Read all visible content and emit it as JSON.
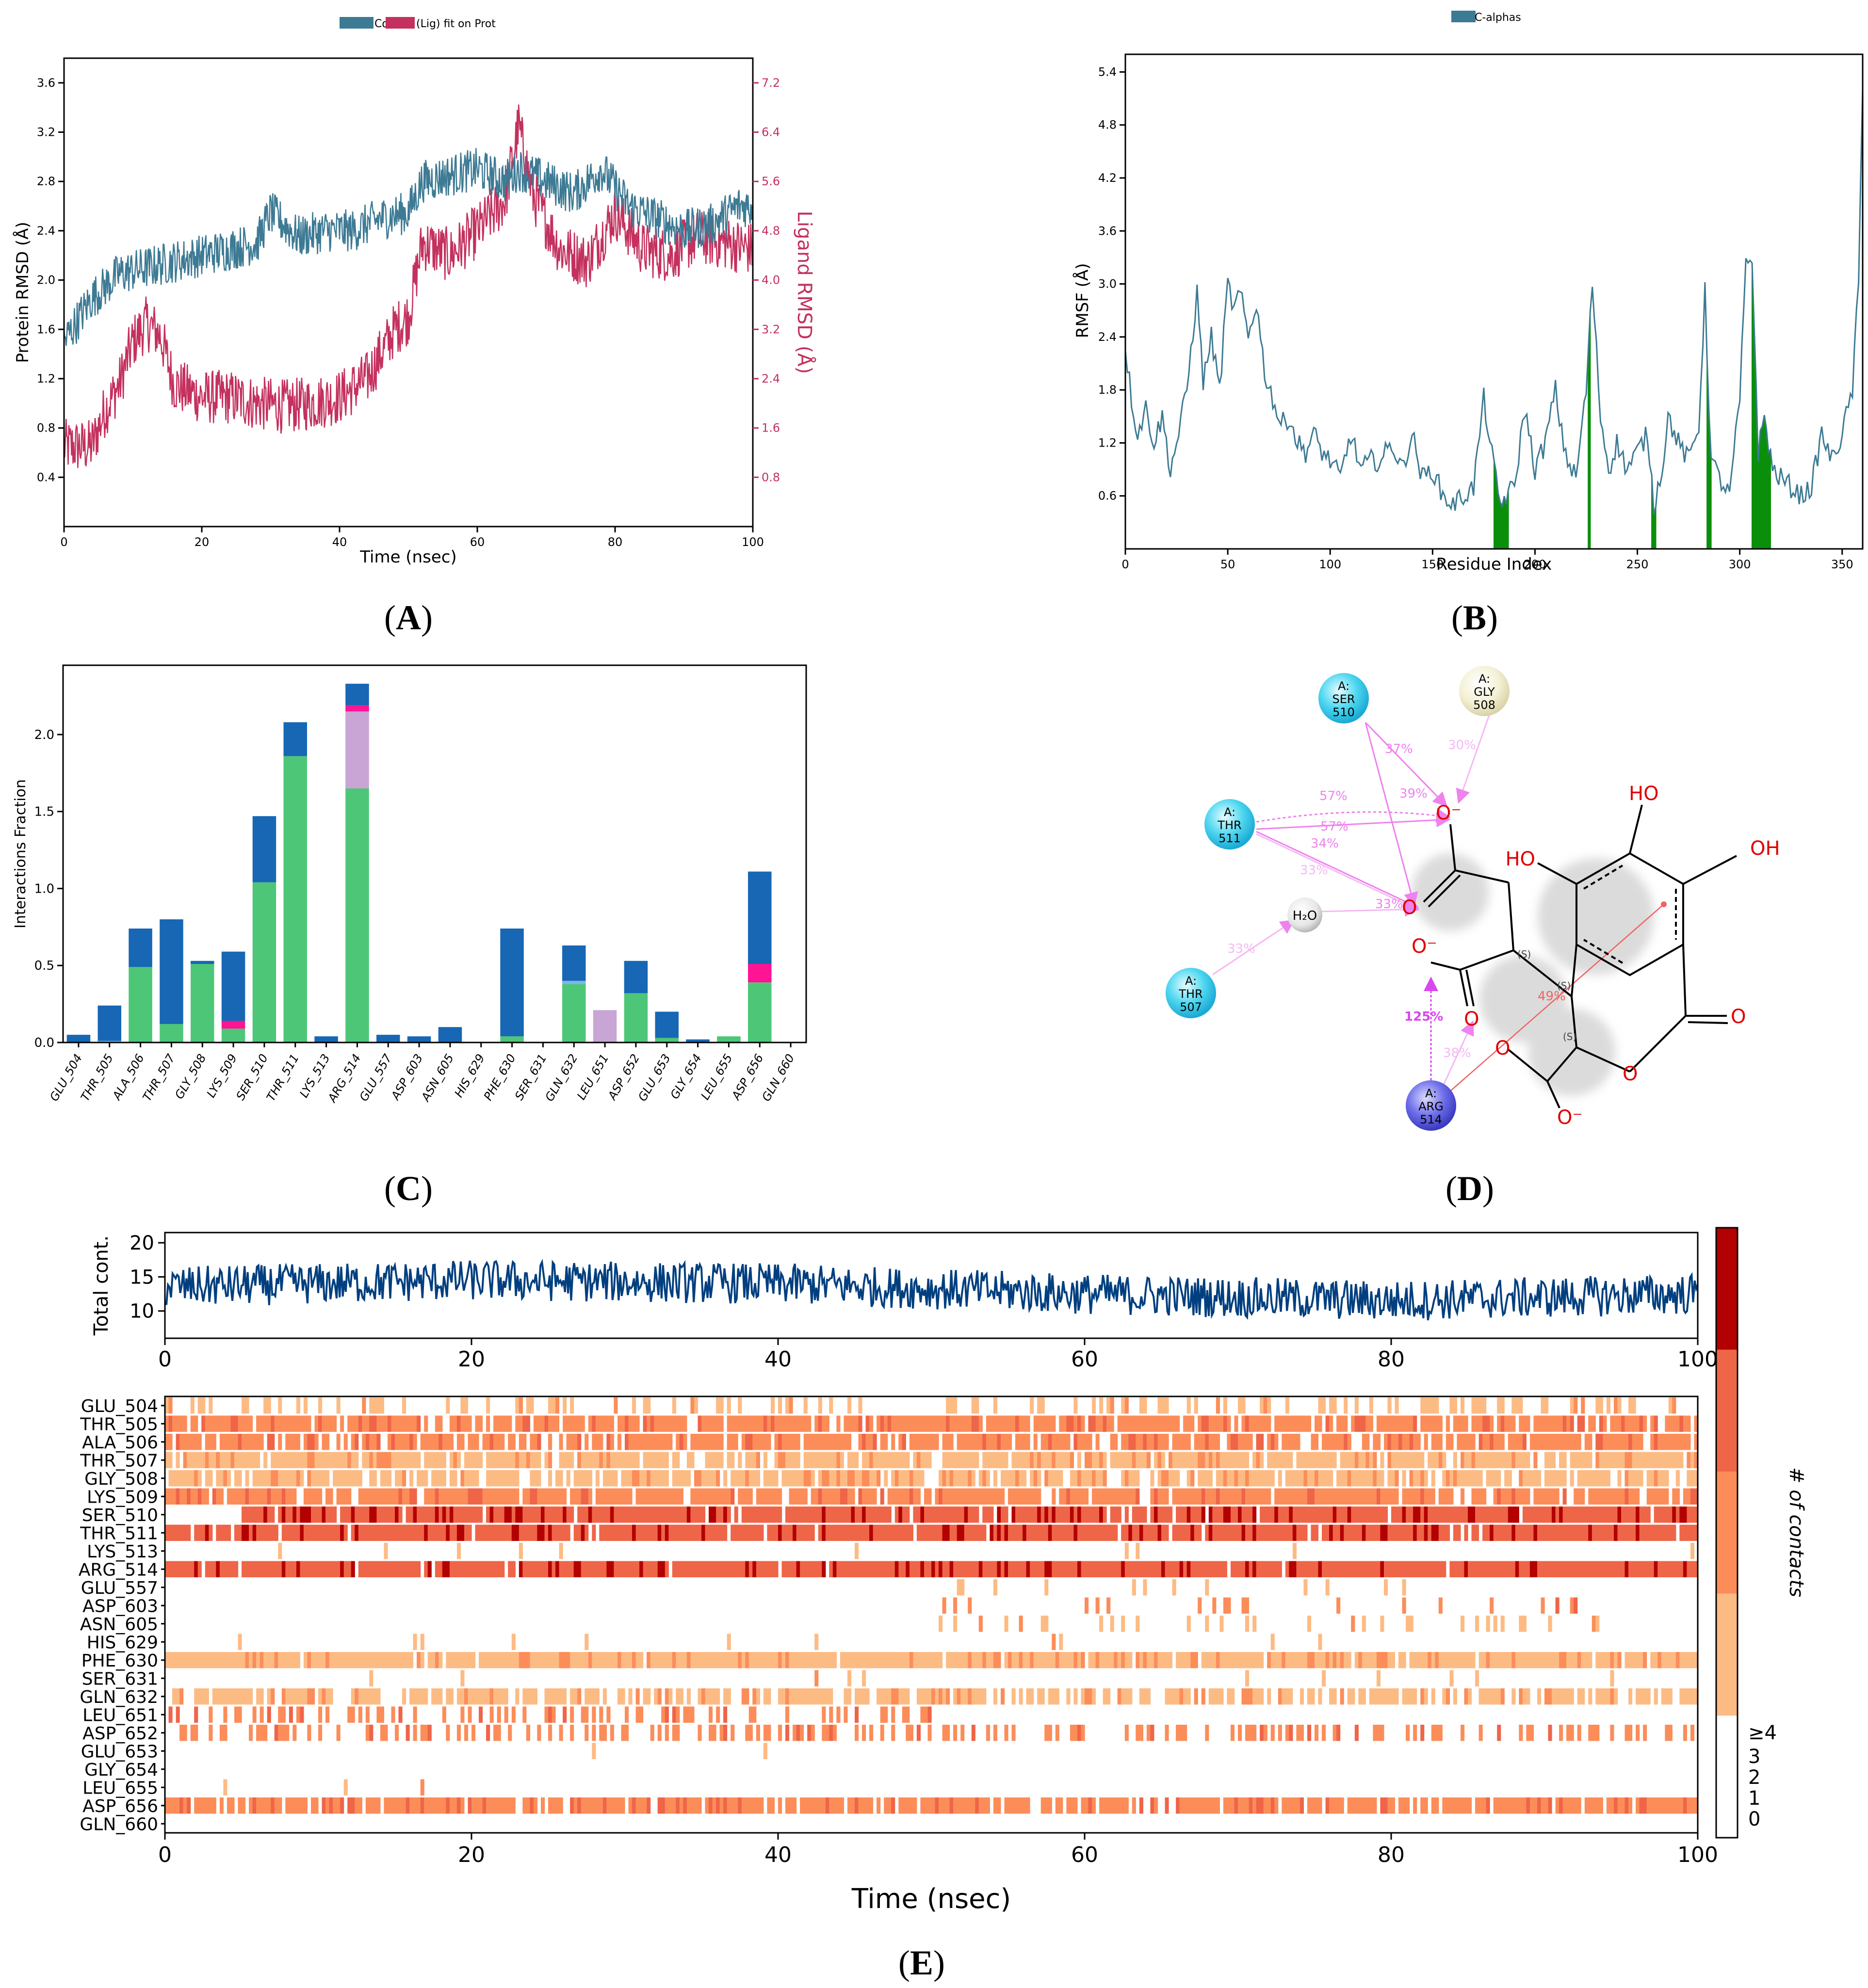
{
  "panels": {
    "A": {
      "label_open": "(",
      "letter": "A",
      "label_close": ")"
    },
    "B": {
      "label_open": "(",
      "letter": "B",
      "label_close": ")"
    },
    "C": {
      "label_open": "(",
      "letter": "C",
      "label_close": ")"
    },
    "D": {
      "label_open": "(",
      "letter": "D",
      "label_close": ")"
    },
    "E": {
      "label_open": "(",
      "letter": "E",
      "label_close": ")"
    }
  },
  "colors": {
    "protein": "#3d7a94",
    "ligand": "#c4315e",
    "green": "#0a8f0a",
    "hbond": "#4dc777",
    "hydrophobic": "#7bb6ea",
    "water": "#1767b5",
    "ionic": "#ff1493",
    "pi": "#c8a5d4",
    "contact_line": "#003f7f"
  },
  "chart_data": [
    {
      "id": "A",
      "type": "line",
      "legend": [
        "Cα",
        "(Lig) fit on Prot"
      ],
      "xlabel": "Time (nsec)",
      "ylabel": "Protein RMSD (Å)",
      "y2label": "Ligand RMSD (Å)",
      "xlim": [
        0,
        100
      ],
      "ylim": [
        0,
        3.8
      ],
      "y2lim": [
        0,
        7.6
      ],
      "xticks": [
        "0",
        "20",
        "40",
        "60",
        "80",
        "100"
      ],
      "yticks": [
        "0.4",
        "0.8",
        "1.2",
        "1.6",
        "2.0",
        "2.4",
        "2.8",
        "3.2",
        "3.6"
      ],
      "y2ticks": [
        "0.8",
        "1.6",
        "2.4",
        "3.2",
        "4.0",
        "4.8",
        "5.6",
        "6.4",
        "7.2"
      ],
      "series": [
        {
          "name": "Cα",
          "x": [
            0,
            4,
            8,
            12,
            16,
            20,
            24,
            28,
            30,
            34,
            38,
            42,
            46,
            50,
            52,
            56,
            60,
            64,
            66,
            70,
            74,
            78,
            82,
            86,
            90,
            94,
            98,
            100
          ],
          "values": [
            1.5,
            1.85,
            2.05,
            2.1,
            2.15,
            2.2,
            2.25,
            2.3,
            2.55,
            2.35,
            2.4,
            2.4,
            2.5,
            2.55,
            2.8,
            2.85,
            2.9,
            2.8,
            2.9,
            2.8,
            2.7,
            2.9,
            2.6,
            2.5,
            2.4,
            2.45,
            2.6,
            2.6
          ]
        },
        {
          "name": "(Lig) fit on Prot",
          "x": [
            0,
            4,
            6,
            8,
            10,
            12,
            14,
            16,
            18,
            20,
            24,
            28,
            32,
            36,
            40,
            44,
            48,
            50,
            52,
            56,
            60,
            64,
            66,
            68,
            72,
            76,
            80,
            84,
            88,
            92,
            96,
            100
          ],
          "values": [
            1.3,
            1.3,
            1.9,
            2.3,
            3.0,
            3.3,
            3.1,
            2.3,
            2.2,
            2.1,
            2.1,
            2.0,
            1.95,
            2.0,
            2.1,
            2.4,
            3.2,
            3.4,
            4.6,
            4.4,
            4.8,
            5.3,
            6.5,
            5.4,
            4.5,
            4.3,
            5.1,
            4.5,
            4.4,
            4.7,
            4.6,
            4.5
          ]
        }
      ]
    },
    {
      "id": "B",
      "type": "line",
      "legend": [
        "C-alphas"
      ],
      "xlabel": "Residue Index",
      "ylabel": "RMSF (Å)",
      "xlim": [
        0,
        360
      ],
      "ylim": [
        0,
        5.6
      ],
      "xticks": [
        "0",
        "50",
        "100",
        "150",
        "200",
        "250",
        "300",
        "350"
      ],
      "yticks": [
        "0.6",
        "1.2",
        "1.8",
        "2.4",
        "3.0",
        "3.6",
        "4.2",
        "4.8",
        "5.4"
      ],
      "series": [
        {
          "name": "C-alphas",
          "x": [
            0,
            3,
            6,
            10,
            14,
            18,
            22,
            26,
            30,
            35,
            38,
            42,
            46,
            50,
            53,
            56,
            60,
            64,
            68,
            72,
            76,
            80,
            84,
            88,
            92,
            96,
            100,
            105,
            110,
            115,
            120,
            125,
            130,
            135,
            140,
            145,
            150,
            155,
            160,
            165,
            170,
            175,
            180,
            183,
            186,
            190,
            195,
            200,
            205,
            210,
            213,
            216,
            220,
            225,
            228,
            232,
            236,
            240,
            245,
            250,
            255,
            258,
            262,
            265,
            270,
            275,
            280,
            283,
            286,
            290,
            295,
            300,
            303,
            306,
            309,
            312,
            316,
            320,
            325,
            330,
            335,
            340,
            345,
            350,
            355,
            358,
            360
          ],
          "values": [
            2.3,
            1.7,
            1.3,
            1.6,
            1.2,
            1.5,
            0.9,
            1.3,
            1.8,
            2.9,
            1.9,
            2.4,
            1.8,
            3.0,
            2.7,
            2.9,
            2.4,
            2.8,
            2.0,
            1.7,
            1.4,
            1.5,
            1.2,
            1.1,
            1.3,
            1.1,
            1.0,
            0.8,
            1.3,
            0.9,
            1.0,
            1.0,
            1.2,
            0.9,
            1.3,
            0.8,
            0.9,
            0.6,
            0.5,
            0.6,
            0.7,
            1.7,
            0.9,
            0.5,
            0.6,
            0.7,
            1.6,
            0.9,
            1.2,
            1.8,
            1.3,
            1.0,
            0.8,
            1.8,
            3.0,
            1.5,
            0.9,
            1.2,
            0.9,
            1.1,
            1.3,
            0.5,
            0.9,
            1.5,
            1.2,
            1.0,
            1.4,
            2.9,
            1.0,
            0.8,
            0.6,
            1.7,
            3.2,
            3.3,
            1.1,
            1.5,
            0.9,
            0.8,
            0.7,
            0.6,
            0.7,
            1.3,
            1.0,
            1.3,
            1.8,
            3.0,
            5.2
          ]
        }
      ],
      "highlight_regions": [
        [
          180,
          187
        ],
        [
          226,
          227
        ],
        [
          257,
          259
        ],
        [
          284,
          286
        ],
        [
          306,
          315
        ]
      ]
    },
    {
      "id": "C",
      "type": "bar",
      "ylabel": "Interactions Fraction",
      "ylim": [
        0,
        2.45
      ],
      "yticks": [
        "0.0",
        "0.5",
        "1.0",
        "1.5",
        "2.0"
      ],
      "categories": [
        "GLU_504",
        "THR_505",
        "ALA_506",
        "THR_507",
        "GLY_508",
        "LYS_509",
        "SER_510",
        "THR_511",
        "LYS_513",
        "ARG_514",
        "GLU_557",
        "ASP_603",
        "ASN_605",
        "HIS_629",
        "PHE_630",
        "SER_631",
        "GLN_632",
        "LEU_651",
        "ASP_652",
        "GLU_653",
        "GLY_654",
        "LEU_655",
        "ASP_656",
        "GLN_660"
      ],
      "series": [
        {
          "name": "H-bonds",
          "values": [
            0.0,
            0.0,
            0.49,
            0.12,
            0.51,
            0.09,
            1.04,
            1.86,
            0.0,
            1.65,
            0.0,
            0.0,
            0.0,
            0.0,
            0.04,
            0.0,
            0.38,
            0.0,
            0.32,
            0.03,
            0.0,
            0.04,
            0.39,
            0.0
          ]
        },
        {
          "name": "Hydrophobic",
          "values": [
            0.0,
            0.01,
            0.0,
            0.0,
            0.0,
            0.0,
            0.0,
            0.0,
            0.0,
            0.0,
            0.0,
            0.0,
            0.0,
            0.0,
            0.0,
            0.0,
            0.02,
            0.0,
            0.0,
            0.0,
            0.0,
            0.0,
            0.0,
            0.0
          ]
        },
        {
          "name": "Ionic",
          "values": [
            0.0,
            0.0,
            0.0,
            0.0,
            0.0,
            0.05,
            0.0,
            0.0,
            0.0,
            0.04,
            0.0,
            0.0,
            0.0,
            0.0,
            0.0,
            0.0,
            0.0,
            0.0,
            0.0,
            0.0,
            0.0,
            0.0,
            0.12,
            0.0
          ]
        },
        {
          "name": "Pi",
          "values": [
            0.0,
            0.0,
            0.0,
            0.0,
            0.0,
            0.0,
            0.0,
            0.0,
            0.0,
            0.5,
            0.0,
            0.0,
            0.0,
            0.0,
            0.0,
            0.0,
            0.0,
            0.21,
            0.0,
            0.0,
            0.0,
            0.0,
            0.0,
            0.0
          ]
        },
        {
          "name": "Water bridges",
          "values": [
            0.05,
            0.23,
            0.25,
            0.68,
            0.02,
            0.45,
            0.43,
            0.22,
            0.04,
            0.14,
            0.05,
            0.04,
            0.1,
            0.0,
            0.7,
            0.0,
            0.23,
            0.0,
            0.21,
            0.17,
            0.02,
            0.0,
            0.6,
            0.0
          ]
        }
      ]
    },
    {
      "id": "E",
      "type": "heatmap",
      "top_ylabel": "Total cont.",
      "top_yticks": [
        "10",
        "15",
        "20"
      ],
      "top_ylim": [
        6,
        21.5
      ],
      "xlabel": "Time (nsec)",
      "xlim": [
        0,
        100
      ],
      "xticks": [
        "0",
        "20",
        "40",
        "60",
        "80",
        "100"
      ],
      "colorbar_label": "# of contacts",
      "colorbar_ticks": [
        "0",
        "1",
        "2",
        "3",
        "≥4"
      ],
      "colorbar_colors": [
        "#ffffff",
        "#fdbb84",
        "#fc8d59",
        "#ef6548",
        "#b30000"
      ],
      "rows": [
        "GLU_504",
        "THR_505",
        "ALA_506",
        "THR_507",
        "GLY_508",
        "LYS_509",
        "SER_510",
        "THR_511",
        "LYS_513",
        "ARG_514",
        "GLU_557",
        "ASP_603",
        "ASN_605",
        "HIS_629",
        "PHE_630",
        "SER_631",
        "GLN_632",
        "LEU_651",
        "ASP_652",
        "GLU_653",
        "GLY_654",
        "LEU_655",
        "ASP_656",
        "GLN_660"
      ],
      "row_activity": [
        0.25,
        0.85,
        0.8,
        0.85,
        0.75,
        0.85,
        0.95,
        0.95,
        0.02,
        0.97,
        0.06,
        0.12,
        0.15,
        0.02,
        0.95,
        0.02,
        0.7,
        0.3,
        0.35,
        0.05,
        0.01,
        0.04,
        0.85,
        0.01
      ],
      "row_level": [
        1,
        2,
        2,
        1,
        1,
        2,
        3,
        3,
        1,
        3,
        1,
        2,
        1,
        1,
        1,
        1,
        1,
        2,
        2,
        1,
        1,
        1,
        2,
        1
      ],
      "row_active_range": [
        [
          0,
          100
        ],
        [
          0,
          100
        ],
        [
          0,
          100
        ],
        [
          0,
          100
        ],
        [
          0,
          100
        ],
        [
          0,
          100
        ],
        [
          5,
          100
        ],
        [
          0,
          100
        ],
        [
          0,
          100
        ],
        [
          0,
          100
        ],
        [
          50,
          85
        ],
        [
          50,
          95
        ],
        [
          50,
          95
        ],
        [
          0,
          100
        ],
        [
          0,
          100
        ],
        [
          0,
          100
        ],
        [
          0,
          100
        ],
        [
          0,
          50
        ],
        [
          0,
          100
        ],
        [
          0,
          40
        ],
        [
          0,
          40
        ],
        [
          0,
          40
        ],
        [
          0,
          100
        ],
        [
          0,
          2
        ]
      ],
      "total_contacts_mean": [
        {
          "x": 0,
          "y": 13.5
        },
        {
          "x": 20,
          "y": 14.5
        },
        {
          "x": 40,
          "y": 14
        },
        {
          "x": 60,
          "y": 12.5
        },
        {
          "x": 80,
          "y": 11.5
        },
        {
          "x": 100,
          "y": 12.5
        }
      ]
    }
  ],
  "diagram_D": {
    "residues": [
      {
        "chain": "A:",
        "name": "SER",
        "num": "510",
        "color": "cyan"
      },
      {
        "chain": "A:",
        "name": "GLY",
        "num": "508",
        "color": "ivory"
      },
      {
        "chain": "A:",
        "name": "THR",
        "num": "511",
        "color": "cyan"
      },
      {
        "chain": "A:",
        "name": "THR",
        "num": "507",
        "color": "cyan"
      },
      {
        "chain": "A:",
        "name": "ARG",
        "num": "514",
        "color": "blue"
      }
    ],
    "water": "H₂O",
    "percentages": [
      "37%",
      "30%",
      "57%",
      "39%",
      "57%",
      "34%",
      "33%",
      "33%",
      "33%",
      "125%",
      "38%",
      "49%"
    ],
    "atoms": {
      "o_minus": "O⁻",
      "o": "O",
      "ho": "HO",
      "oh": "OH",
      "s": "(S)"
    }
  }
}
